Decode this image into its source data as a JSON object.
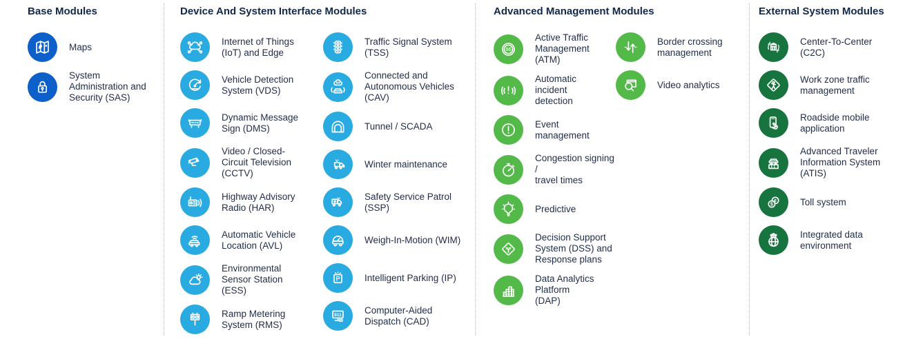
{
  "colors": {
    "base_blue": "#0d5fca",
    "device_cyan": "#29abe2",
    "advanced_green": "#53b948",
    "external_dark_green": "#17743e",
    "heading_text": "#12284b",
    "label_text": "#1f2c49",
    "divider": "#bdbdbd"
  },
  "columns": [
    {
      "title": "Base Modules",
      "groups": [
        {
          "items": [
            {
              "label": "Maps",
              "icon": "map-icon"
            },
            {
              "label": "System\nAdministration and\nSecurity (SAS)",
              "icon": "lock-icon"
            }
          ]
        }
      ]
    },
    {
      "title": "Device And System Interface Modules",
      "groups": [
        {
          "items": [
            {
              "label": "Internet of Things\n(IoT) and Edge",
              "icon": "iot-icon"
            },
            {
              "label": "Vehicle Detection\nSystem (VDS)",
              "icon": "vds-icon"
            },
            {
              "label": "Dynamic Message\nSign (DMS)",
              "icon": "dms-icon"
            },
            {
              "label": "Video / Closed-\nCircuit Television\n(CCTV)",
              "icon": "cctv-icon"
            },
            {
              "label": "Highway Advisory\nRadio (HAR)",
              "icon": "har-icon"
            },
            {
              "label": "Automatic Vehicle\nLocation (AVL)",
              "icon": "avl-icon"
            },
            {
              "label": "Environmental\nSensor Station\n(ESS)",
              "icon": "ess-icon"
            },
            {
              "label": "Ramp Metering\nSystem (RMS)",
              "icon": "rms-icon"
            }
          ]
        },
        {
          "items": [
            {
              "label": "Traffic Signal System\n(TSS)",
              "icon": "tss-icon"
            },
            {
              "label": "Connected and\nAutonomous Vehicles\n(CAV)",
              "icon": "cav-icon"
            },
            {
              "label": "Tunnel / SCADA",
              "icon": "tunnel-icon"
            },
            {
              "label": "Winter maintenance",
              "icon": "winter-icon"
            },
            {
              "label": "Safety Service Patrol\n(SSP)",
              "icon": "ssp-icon"
            },
            {
              "label": "Weigh-In-Motion (WIM)",
              "icon": "wim-icon"
            },
            {
              "label": "Intelligent Parking (IP)",
              "icon": "ip-icon"
            },
            {
              "label": "Computer-Aided\nDispatch (CAD)",
              "icon": "cad-icon"
            }
          ]
        }
      ]
    },
    {
      "title": "Advanced Management Modules",
      "groups": [
        {
          "items": [
            {
              "label": "Active Traffic\nManagement\n(ATM)",
              "icon": "atm-icon"
            },
            {
              "label": "Automatic\nincident\ndetection",
              "icon": "aid-icon"
            },
            {
              "label": "Event\nmanagement",
              "icon": "event-icon"
            },
            {
              "label": "Congestion signing /\ntravel times",
              "icon": "congestion-icon"
            },
            {
              "label": "Predictive",
              "icon": "predictive-icon"
            },
            {
              "label": "Decision Support\nSystem (DSS) and\nResponse plans",
              "icon": "dss-icon"
            },
            {
              "label": "Data Analytics Platform\n(DAP)",
              "icon": "dap-icon"
            }
          ]
        },
        {
          "items": [
            {
              "label": "Border crossing\nmanagement",
              "icon": "border-icon"
            },
            {
              "label": "Video analytics",
              "icon": "video-analytics-icon"
            }
          ]
        }
      ]
    },
    {
      "title": "External System Modules",
      "groups": [
        {
          "items": [
            {
              "label": "Center-To-Center\n(C2C)",
              "icon": "c2c-icon"
            },
            {
              "label": "Work zone traffic\nmanagement",
              "icon": "workzone-icon"
            },
            {
              "label": "Roadside mobile\napplication",
              "icon": "roadside-icon"
            },
            {
              "label": "Advanced Traveler\nInformation System\n(ATIS)",
              "icon": "atis-icon"
            },
            {
              "label": "Toll system",
              "icon": "toll-icon"
            },
            {
              "label": "Integrated data\nenvironment",
              "icon": "ide-icon"
            }
          ]
        }
      ]
    }
  ]
}
